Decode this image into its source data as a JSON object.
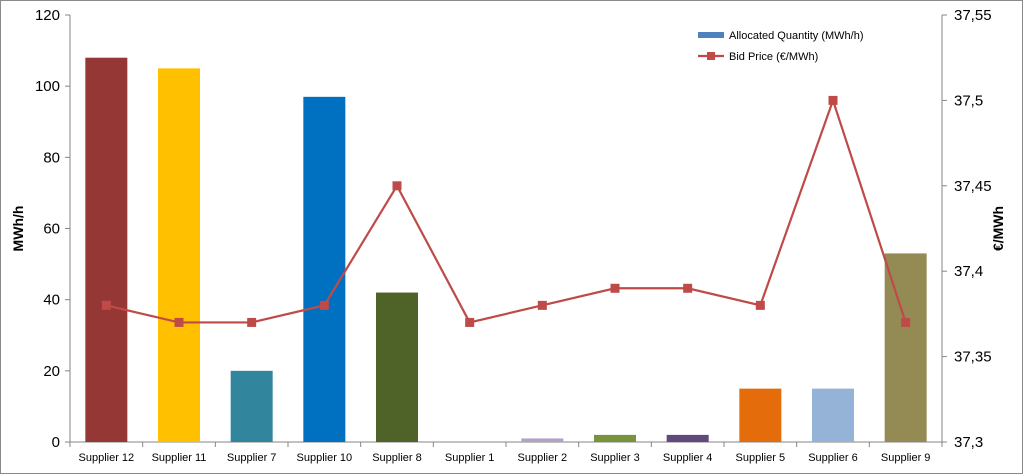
{
  "chart_data": {
    "type": "bar",
    "categories": [
      "Supplier 12",
      "Supplier 11",
      "Supplier 7",
      "Supplier 10",
      "Supplier 8",
      "Supplier 1",
      "Supplier 2",
      "Supplier 3",
      "Supplier 4",
      "Supplier 5",
      "Supplier 6",
      "Supplier 9"
    ],
    "series": [
      {
        "name": "Allocated Quantity (MWh/h)",
        "type": "bar",
        "axis": "left",
        "values": [
          108,
          105,
          20,
          97,
          42,
          0,
          1,
          2,
          2,
          15,
          15,
          53
        ],
        "colors": [
          "#953735",
          "#FFC000",
          "#31859C",
          "#0070C0",
          "#4F6228",
          "#7F7F7F",
          "#B3A2C7",
          "#77933C",
          "#604A7B",
          "#E46C0A",
          "#95B3D7",
          "#948A54"
        ],
        "legend_color": "#4F81BD"
      },
      {
        "name": "Bid Price (€/MWh)",
        "type": "line",
        "axis": "right",
        "values": [
          37.38,
          37.37,
          37.37,
          37.38,
          37.45,
          37.37,
          37.38,
          37.39,
          37.39,
          37.38,
          37.5,
          37.37
        ],
        "color": "#BE4B48"
      }
    ],
    "title": "",
    "xlabel": "",
    "ylabel": "MWh/h",
    "y2label": "€/MWh",
    "ylim": [
      0,
      120
    ],
    "yticks": [
      0,
      20,
      40,
      60,
      80,
      100,
      120
    ],
    "y2lim": [
      37.3,
      37.55
    ],
    "y2ticks": [
      "37,3",
      "37,35",
      "37,4",
      "37,45",
      "37,5",
      "37,55"
    ],
    "grid": false,
    "legend_position": "top-right"
  }
}
